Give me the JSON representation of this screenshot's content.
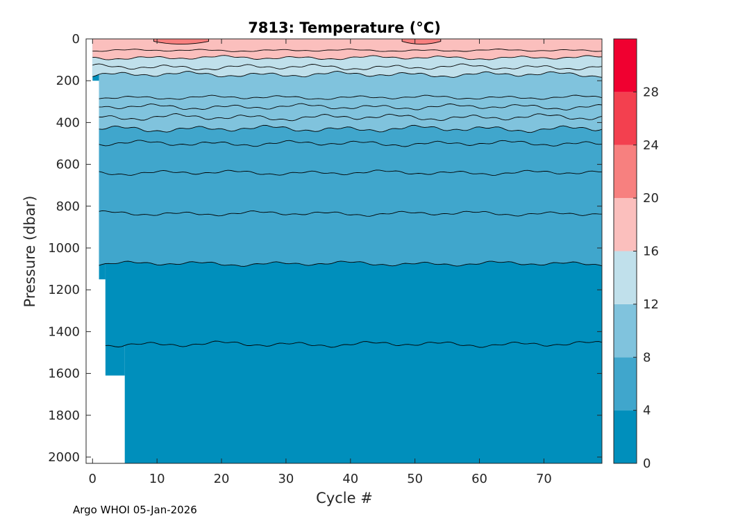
{
  "chart_data": {
    "type": "contourf",
    "title": "7813:  Temperature (°C)",
    "xlabel": "Cycle #",
    "ylabel": "Pressure (dbar)",
    "xlim": [
      -1,
      79
    ],
    "ylim": [
      0,
      2030
    ],
    "y_reversed": true,
    "xticks": [
      0,
      10,
      20,
      30,
      40,
      50,
      60,
      70
    ],
    "yticks": [
      0,
      200,
      400,
      600,
      800,
      1000,
      1200,
      1400,
      1600,
      1800,
      2000
    ],
    "colorbar": {
      "range": [
        0,
        32
      ],
      "ticks": [
        0,
        4,
        8,
        12,
        16,
        20,
        24,
        28
      ],
      "bands": [
        {
          "min": 0,
          "max": 4,
          "color": "#008FBC"
        },
        {
          "min": 4,
          "max": 8,
          "color": "#40A6CC"
        },
        {
          "min": 8,
          "max": 12,
          "color": "#80C3DD"
        },
        {
          "min": 12,
          "max": 16,
          "color": "#C0E0EB"
        },
        {
          "min": 16,
          "max": 20,
          "color": "#FBBFBD"
        },
        {
          "min": 20,
          "max": 24,
          "color": "#F7807F"
        },
        {
          "min": 24,
          "max": 28,
          "color": "#F3404F"
        },
        {
          "min": 28,
          "max": 32,
          "color": "#F00030"
        }
      ]
    },
    "contour_interval": 2,
    "data_coverage": [
      {
        "cycle_start": 0,
        "cycle_end": 1,
        "max_pressure": 200
      },
      {
        "cycle_start": 1,
        "cycle_end": 2,
        "max_pressure": 1150
      },
      {
        "cycle_start": 2,
        "cycle_end": 5,
        "max_pressure": 1610
      },
      {
        "cycle_start": 5,
        "cycle_end": 79,
        "max_pressure": 2030
      }
    ],
    "isotherms": [
      {
        "temp": 20,
        "band_above": "#F7807F",
        "base": 25,
        "amp": 0,
        "segments": [
          [
            9.5,
            18
          ],
          [
            48,
            54
          ]
        ]
      },
      {
        "temp": 18,
        "band_above": "#FBBFBD",
        "base": 55,
        "amp": 6
      },
      {
        "temp": 16,
        "band_above": "#FBBFBD",
        "base": 90,
        "amp": 10
      },
      {
        "temp": 14,
        "band_above": "#C0E0EB",
        "base": 135,
        "amp": 14
      },
      {
        "temp": 12,
        "band_above": "#C0E0EB",
        "base": 170,
        "amp": 14
      },
      {
        "temp": 11,
        "band_above": "#80C3DD",
        "base": 280,
        "amp": 10
      },
      {
        "temp": 10,
        "band_above": "#80C3DD",
        "base": 325,
        "amp": 14
      },
      {
        "temp": 9,
        "band_above": "#80C3DD",
        "base": 375,
        "amp": 16
      },
      {
        "temp": 8,
        "band_above": "#80C3DD",
        "base": 430,
        "amp": 16
      },
      {
        "temp": 7,
        "band_above": "#40A6CC",
        "base": 500,
        "amp": 14
      },
      {
        "temp": 6,
        "band_above": "#40A6CC",
        "base": 640,
        "amp": 12
      },
      {
        "temp": 5,
        "band_above": "#40A6CC",
        "base": 835,
        "amp": 12
      },
      {
        "temp": 4,
        "band_above": "#40A6CC",
        "base": 1075,
        "amp": 12
      },
      {
        "temp": 3,
        "band_above": "#008FBC",
        "base": 1460,
        "amp": 14
      }
    ]
  },
  "footer": {
    "credit": "Argo WHOI 05-Jan-2026"
  }
}
